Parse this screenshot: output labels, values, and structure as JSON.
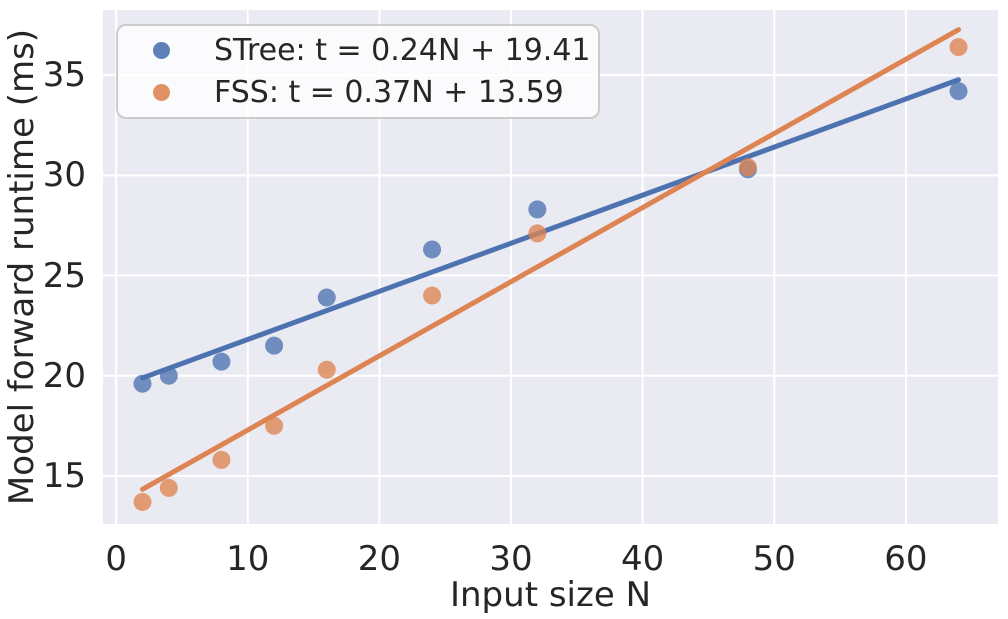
{
  "figure": {
    "background": "#ffffff",
    "plot_background": "#eaeaf2",
    "grid_color": "#ffffff",
    "text_color": "#262626",
    "legend": {
      "background": "rgba(255,255,255,0.8)",
      "border_color": "#cccccc"
    }
  },
  "chart_data": {
    "type": "scatter",
    "title": "",
    "xlabel": "Input size N",
    "ylabel": "Model forward runtime (ms)",
    "x": [
      2,
      4,
      8,
      12,
      16,
      24,
      32,
      48,
      64
    ],
    "series": [
      {
        "name": "STree",
        "legend_label": "STree: t = 0.24N + 19.41",
        "color": "#4c72b0",
        "marker": "dot",
        "values": [
          19.6,
          20.0,
          20.7,
          21.5,
          23.9,
          26.3,
          28.3,
          30.3,
          34.2
        ],
        "fit_line": {
          "slope": 0.24,
          "intercept": 19.41,
          "x_start": 2,
          "x_end": 64
        }
      },
      {
        "name": "FSS",
        "legend_label": "FSS: t = 0.37N + 13.59",
        "color": "#dd8452",
        "marker": "dot",
        "values": [
          13.7,
          14.4,
          15.8,
          17.5,
          20.3,
          24.0,
          27.1,
          30.4,
          36.4
        ],
        "fit_line": {
          "slope": 0.37,
          "intercept": 13.59,
          "x_start": 2,
          "x_end": 64
        }
      }
    ],
    "xticks": [
      0,
      10,
      20,
      30,
      40,
      50,
      60
    ],
    "yticks": [
      15,
      20,
      25,
      30,
      35
    ],
    "xlim": [
      -1.0,
      67.0
    ],
    "ylim": [
      12.6,
      38.25
    ],
    "grid": true,
    "legend_position": "upper-left"
  }
}
